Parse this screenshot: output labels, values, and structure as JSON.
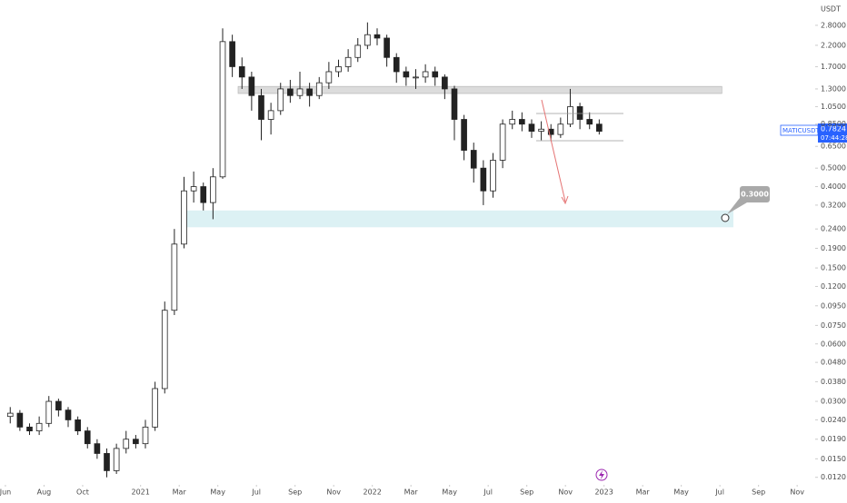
{
  "chart_data": {
    "type": "candlestick",
    "symbol": "MATICUSDT",
    "currency": "USDT",
    "last_price": "0.7824",
    "countdown": "07:44:28",
    "target_label": "0.3000",
    "log_scale": true,
    "ylim": [
      0.0112,
      3.8
    ],
    "yticks": [
      {
        "value": 2.8,
        "label": "2.8000"
      },
      {
        "value": 2.2,
        "label": "2.2000"
      },
      {
        "value": 1.7,
        "label": "1.7000"
      },
      {
        "value": 1.3,
        "label": "1.3000"
      },
      {
        "value": 1.05,
        "label": "1.0500"
      },
      {
        "value": 0.85,
        "label": "0.8500"
      },
      {
        "value": 0.65,
        "label": "0.6500"
      },
      {
        "value": 0.5,
        "label": "0.5000"
      },
      {
        "value": 0.4,
        "label": "0.4000"
      },
      {
        "value": 0.32,
        "label": "0.3200"
      },
      {
        "value": 0.24,
        "label": "0.2400"
      },
      {
        "value": 0.19,
        "label": "0.1900"
      },
      {
        "value": 0.15,
        "label": "0.1500"
      },
      {
        "value": 0.12,
        "label": "0.1200"
      },
      {
        "value": 0.095,
        "label": "0.0950"
      },
      {
        "value": 0.075,
        "label": "0.0750"
      },
      {
        "value": 0.06,
        "label": "0.0600"
      },
      {
        "value": 0.048,
        "label": "0.0480"
      },
      {
        "value": 0.038,
        "label": "0.0380"
      },
      {
        "value": 0.03,
        "label": "0.0300"
      },
      {
        "value": 0.024,
        "label": "0.0240"
      },
      {
        "value": 0.019,
        "label": "0.0190"
      },
      {
        "value": 0.015,
        "label": "0.0150"
      },
      {
        "value": 0.012,
        "label": "0.0120"
      }
    ],
    "xlim": [
      -0.28,
      41.84
    ],
    "xticks": [
      {
        "value": 0,
        "label": "Jun"
      },
      {
        "value": 2,
        "label": "Aug"
      },
      {
        "value": 4,
        "label": "Oct"
      },
      {
        "value": 7,
        "label": "2021"
      },
      {
        "value": 9,
        "label": "Mar"
      },
      {
        "value": 11,
        "label": "May"
      },
      {
        "value": 13,
        "label": "Jul"
      },
      {
        "value": 15,
        "label": "Sep"
      },
      {
        "value": 17,
        "label": "Nov"
      },
      {
        "value": 19,
        "label": "2022"
      },
      {
        "value": 21,
        "label": "Mar"
      },
      {
        "value": 23,
        "label": "May"
      },
      {
        "value": 25,
        "label": "Jul"
      },
      {
        "value": 27,
        "label": "Sep"
      },
      {
        "value": 29,
        "label": "Nov"
      },
      {
        "value": 31,
        "label": "2023"
      },
      {
        "value": 33,
        "label": "Mar"
      },
      {
        "value": 35,
        "label": "May"
      },
      {
        "value": 37,
        "label": "Jul"
      },
      {
        "value": 39,
        "label": "Sep"
      },
      {
        "value": 41,
        "label": "Nov"
      }
    ],
    "x": [
      0.25,
      0.75,
      1.25,
      1.75,
      2.25,
      2.75,
      3.25,
      3.75,
      4.25,
      4.75,
      5.25,
      5.75,
      6.25,
      6.75,
      7.25,
      7.75,
      8.25,
      8.75,
      9.25,
      9.75,
      10.25,
      10.75,
      11.25,
      11.75,
      12.25,
      12.75,
      13.25,
      13.75,
      14.25,
      14.75,
      15.25,
      15.75,
      16.25,
      16.75,
      17.25,
      17.75,
      18.25,
      18.75,
      19.25,
      19.75,
      20.25,
      20.75,
      21.25,
      21.75,
      22.25,
      22.75,
      23.25,
      23.75,
      24.25,
      24.75,
      25.25,
      25.75,
      26.25,
      26.75,
      27.25,
      27.75,
      28.25,
      28.75,
      29.25,
      29.75,
      30.25,
      30.75
    ],
    "open": [
      0.025,
      0.026,
      0.022,
      0.021,
      0.023,
      0.03,
      0.027,
      0.024,
      0.021,
      0.018,
      0.016,
      0.013,
      0.017,
      0.019,
      0.018,
      0.022,
      0.035,
      0.09,
      0.2,
      0.38,
      0.4,
      0.33,
      0.45,
      2.3,
      1.7,
      1.5,
      1.2,
      0.9,
      1.0,
      1.3,
      1.2,
      1.3,
      1.2,
      1.4,
      1.6,
      1.7,
      1.9,
      2.2,
      2.5,
      2.4,
      1.9,
      1.6,
      1.5,
      1.5,
      1.6,
      1.5,
      1.3,
      0.9,
      0.62,
      0.5,
      0.38,
      0.55,
      0.85,
      0.9,
      0.85,
      0.78,
      0.8,
      0.75,
      0.85,
      1.05,
      0.9,
      0.85
    ],
    "high": [
      0.028,
      0.027,
      0.023,
      0.025,
      0.032,
      0.031,
      0.028,
      0.025,
      0.022,
      0.019,
      0.017,
      0.018,
      0.021,
      0.02,
      0.024,
      0.038,
      0.1,
      0.24,
      0.45,
      0.48,
      0.42,
      0.5,
      2.7,
      2.5,
      1.9,
      1.6,
      1.3,
      1.1,
      1.4,
      1.45,
      1.6,
      1.4,
      1.5,
      1.8,
      1.85,
      2.1,
      2.4,
      2.9,
      2.7,
      2.5,
      2.0,
      1.7,
      1.65,
      1.75,
      1.7,
      1.55,
      1.35,
      0.95,
      0.68,
      0.55,
      0.6,
      0.9,
      1.0,
      0.98,
      0.9,
      0.88,
      0.85,
      0.92,
      1.3,
      1.1,
      0.98,
      0.9
    ],
    "low": [
      0.023,
      0.021,
      0.02,
      0.02,
      0.022,
      0.025,
      0.022,
      0.02,
      0.017,
      0.015,
      0.012,
      0.0125,
      0.016,
      0.017,
      0.017,
      0.021,
      0.033,
      0.085,
      0.19,
      0.33,
      0.3,
      0.27,
      0.44,
      1.5,
      1.3,
      1.0,
      0.7,
      0.75,
      0.95,
      1.1,
      1.15,
      1.05,
      1.15,
      1.3,
      1.5,
      1.6,
      1.8,
      2.1,
      2.2,
      1.7,
      1.4,
      1.35,
      1.3,
      1.4,
      1.35,
      1.15,
      0.7,
      0.55,
      0.42,
      0.32,
      0.35,
      0.5,
      0.8,
      0.78,
      0.72,
      0.7,
      0.7,
      0.72,
      0.82,
      0.8,
      0.8,
      0.75
    ],
    "close": [
      0.026,
      0.022,
      0.021,
      0.023,
      0.03,
      0.027,
      0.024,
      0.021,
      0.018,
      0.016,
      0.013,
      0.017,
      0.019,
      0.018,
      0.022,
      0.035,
      0.09,
      0.2,
      0.38,
      0.4,
      0.33,
      0.45,
      2.3,
      1.7,
      1.5,
      1.2,
      0.9,
      1.0,
      1.3,
      1.2,
      1.3,
      1.2,
      1.4,
      1.6,
      1.7,
      1.9,
      2.2,
      2.5,
      2.4,
      1.9,
      1.6,
      1.5,
      1.5,
      1.6,
      1.5,
      1.3,
      0.9,
      0.62,
      0.5,
      0.38,
      0.55,
      0.85,
      0.9,
      0.85,
      0.78,
      0.8,
      0.75,
      0.85,
      1.05,
      0.9,
      0.85,
      0.78
    ],
    "zones": [
      {
        "from": 1.23,
        "to": 1.34,
        "start": 12.05,
        "end": 37.1,
        "color": "#dcdcdc"
      },
      {
        "from": 0.245,
        "to": 0.3,
        "start": 9.1,
        "end": 37.7,
        "color": "#dcf1f4"
      }
    ]
  }
}
